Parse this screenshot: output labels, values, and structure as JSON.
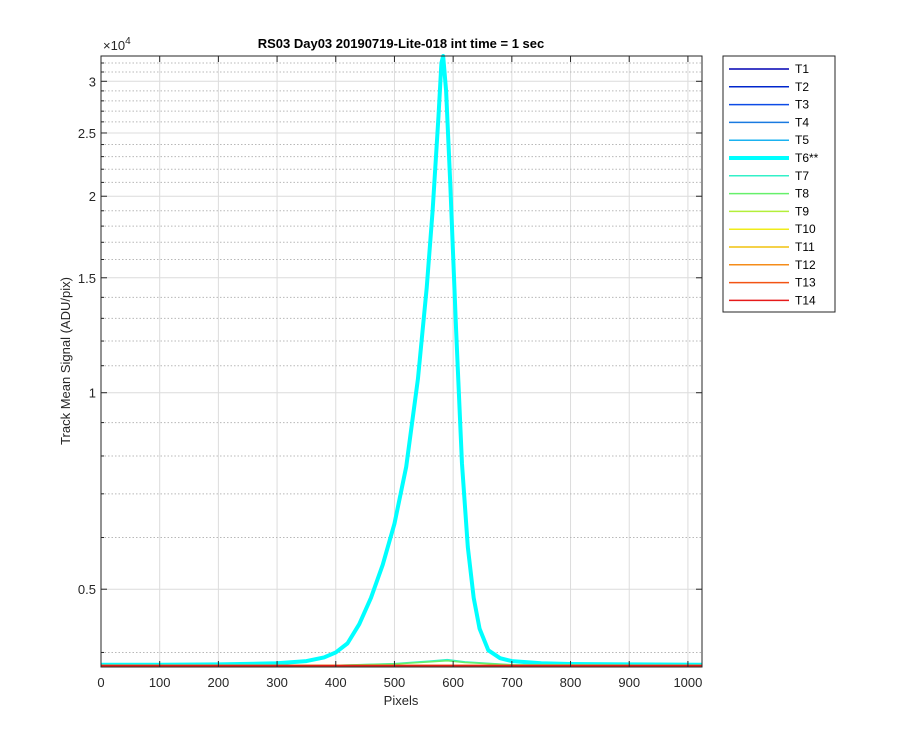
{
  "chart_data": {
    "type": "line",
    "title": "RS03 Day03 20190719-Lite-018 int time = 1 sec",
    "xlabel": "Pixels",
    "ylabel": "Track Mean Signal (ADU/pix)",
    "y_exponent_label": "×10",
    "y_exponent_power": "4",
    "yscale": "log",
    "xlim": [
      0,
      1024
    ],
    "ylim": [
      3800,
      32800
    ],
    "x_ticks": [
      0,
      100,
      200,
      300,
      400,
      500,
      600,
      700,
      800,
      900,
      1000
    ],
    "x_tick_labels": [
      "0",
      "100",
      "200",
      "300",
      "400",
      "500",
      "600",
      "700",
      "800",
      "900",
      "1000"
    ],
    "y_ticks": [
      5000,
      10000,
      15000,
      20000,
      25000,
      30000
    ],
    "y_tick_labels": [
      "0.5",
      "1",
      "1.5",
      "2",
      "2.5",
      "3"
    ],
    "y_minor_grid": [
      4000,
      6000,
      7000,
      8000,
      9000,
      11000,
      12000,
      13000,
      14000,
      16000,
      17000,
      18000,
      19000,
      21000,
      22000,
      23000,
      24000,
      26000,
      27000,
      28000,
      29000,
      31000,
      32000
    ],
    "grid": true,
    "legend_position": "outside-right",
    "series": [
      {
        "name": "T1",
        "color": "#0000b3",
        "x": [
          0,
          1024
        ],
        "y": [
          3820,
          3820
        ]
      },
      {
        "name": "T2",
        "color": "#0026cc",
        "x": [
          0,
          1024
        ],
        "y": [
          3820,
          3820
        ]
      },
      {
        "name": "T3",
        "color": "#0d4be6",
        "x": [
          0,
          1024
        ],
        "y": [
          3820,
          3820
        ]
      },
      {
        "name": "T4",
        "color": "#1a7ae0",
        "x": [
          0,
          1024
        ],
        "y": [
          3820,
          3820
        ]
      },
      {
        "name": "T5",
        "color": "#1ab2f0",
        "x": [
          0,
          1024
        ],
        "y": [
          3820,
          3820
        ]
      },
      {
        "name": "T6**",
        "color": "#00ffff",
        "bold": true,
        "x": [
          0,
          100,
          200,
          300,
          350,
          380,
          400,
          420,
          440,
          460,
          480,
          500,
          520,
          540,
          555,
          565,
          575,
          580,
          583,
          588,
          595,
          605,
          615,
          625,
          635,
          645,
          660,
          680,
          700,
          750,
          800,
          900,
          1024
        ],
        "y": [
          3830,
          3830,
          3835,
          3850,
          3880,
          3930,
          4000,
          4130,
          4420,
          4850,
          5450,
          6300,
          7700,
          10500,
          14500,
          19000,
          26500,
          32000,
          32800,
          29000,
          21000,
          12500,
          7800,
          5800,
          4850,
          4350,
          4030,
          3920,
          3880,
          3850,
          3840,
          3835,
          3830
        ]
      },
      {
        "name": "T7",
        "color": "#33f0c8",
        "x": [
          0,
          400,
          500,
          560,
          590,
          620,
          700,
          1024
        ],
        "y": [
          3820,
          3822,
          3845,
          3880,
          3900,
          3870,
          3830,
          3820
        ]
      },
      {
        "name": "T8",
        "color": "#66f06b",
        "x": [
          0,
          400,
          500,
          560,
          590,
          620,
          700,
          1024
        ],
        "y": [
          3820,
          3822,
          3840,
          3870,
          3885,
          3860,
          3828,
          3820
        ]
      },
      {
        "name": "T9",
        "color": "#b3ef3a",
        "x": [
          0,
          1024
        ],
        "y": [
          3820,
          3820
        ]
      },
      {
        "name": "T10",
        "color": "#f0ec1a",
        "x": [
          0,
          1024
        ],
        "y": [
          3820,
          3820
        ]
      },
      {
        "name": "T11",
        "color": "#f0c20f",
        "x": [
          0,
          1024
        ],
        "y": [
          3820,
          3820
        ]
      },
      {
        "name": "T12",
        "color": "#f58c1a",
        "x": [
          0,
          1024
        ],
        "y": [
          3820,
          3820
        ]
      },
      {
        "name": "T13",
        "color": "#f25414",
        "x": [
          0,
          1024
        ],
        "y": [
          3820,
          3820
        ]
      },
      {
        "name": "T14",
        "color": "#e61a1a",
        "x": [
          0,
          1024
        ],
        "y": [
          3818,
          3818
        ]
      }
    ]
  }
}
